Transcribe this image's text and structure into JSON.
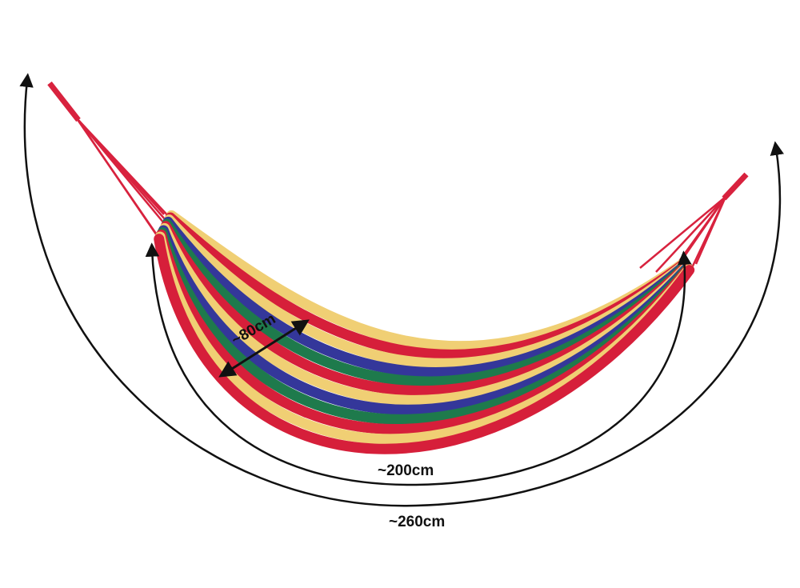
{
  "dimensions": {
    "width_label": "~80cm",
    "bed_length_label": "~200cm",
    "total_length_label": "~260cm"
  },
  "colors": {
    "stripes": [
      "#f0cf74",
      "#d61f3a",
      "#f0cf74",
      "#34379a",
      "#1e7a4c",
      "#d61f3a",
      "#f0cf74",
      "#34379a",
      "#1e7a4c",
      "#d61f3a",
      "#f0cf74",
      "#d61f3a"
    ],
    "rope": "#d8223e",
    "annotation": "#111111"
  }
}
